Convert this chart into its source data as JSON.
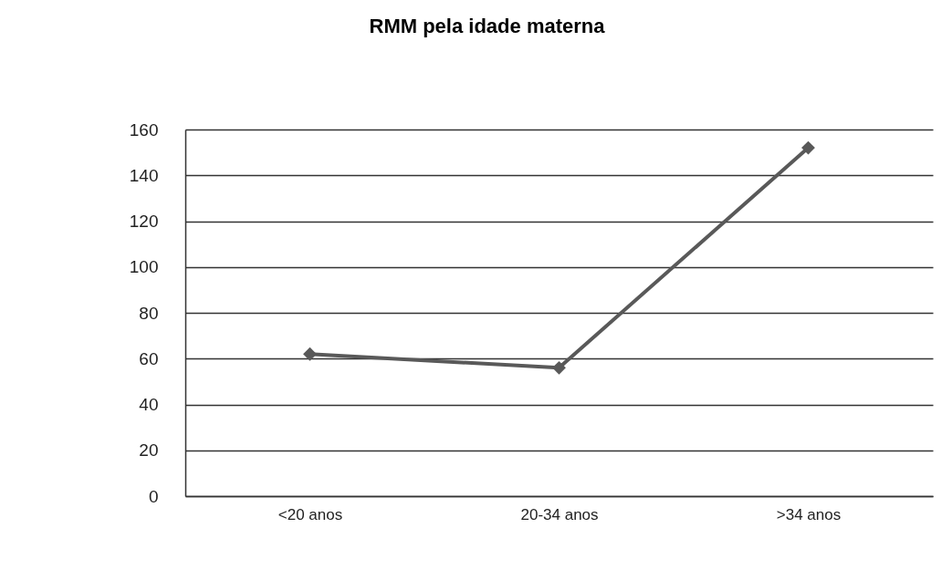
{
  "chart_data": {
    "type": "line",
    "title": "RMM pela idade materna",
    "categories": [
      "<20 anos",
      "20-34 anos",
      ">34 anos"
    ],
    "series": [
      {
        "color": "#595959",
        "values": [
          62,
          56,
          152
        ]
      }
    ],
    "ylim": [
      0,
      160
    ],
    "yticks": [
      0,
      20,
      40,
      60,
      80,
      100,
      120,
      140,
      160
    ],
    "grid": "y",
    "marker": "diamond",
    "line_style": "solid"
  }
}
